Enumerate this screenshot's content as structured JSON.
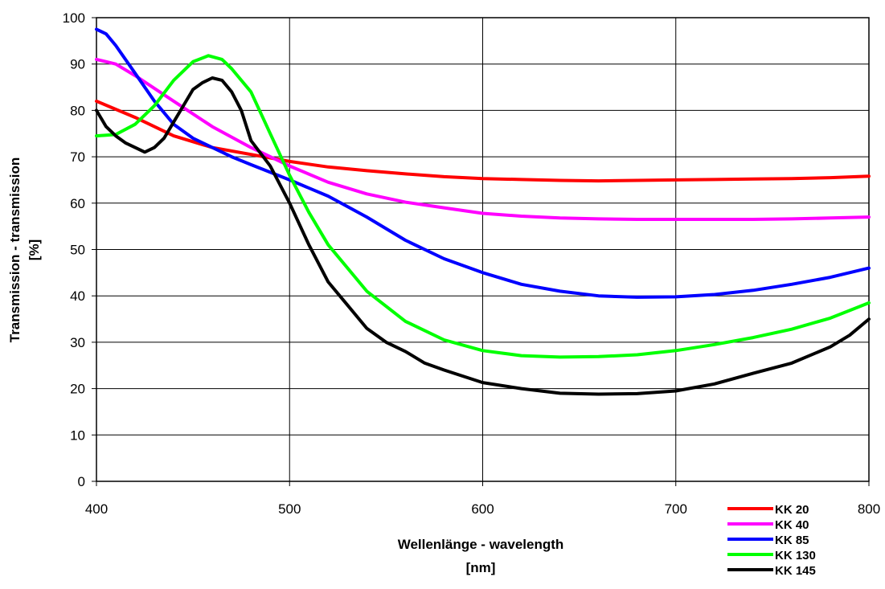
{
  "chart_data": {
    "type": "line",
    "title": "",
    "xlabel": "Wellenlänge - wavelength",
    "xlabel_unit": "[nm]",
    "ylabel": "Transmission - transmission",
    "ylabel_unit": "[%]",
    "xlim": [
      400,
      800
    ],
    "ylim": [
      0,
      100
    ],
    "xticks": [
      400,
      500,
      600,
      700,
      800
    ],
    "yticks": [
      0,
      10,
      20,
      30,
      40,
      50,
      60,
      70,
      80,
      90,
      100
    ],
    "grid": true,
    "legend_position": "bottom-right",
    "series": [
      {
        "name": "KK 20",
        "color": "#ff0000",
        "x": [
          400,
          420,
          440,
          460,
          480,
          500,
          520,
          540,
          560,
          580,
          600,
          620,
          640,
          660,
          680,
          700,
          720,
          740,
          760,
          780,
          800
        ],
        "y": [
          82,
          78.5,
          74.5,
          72,
          70.5,
          69,
          67.8,
          67,
          66.3,
          65.7,
          65.3,
          65.1,
          64.9,
          64.8,
          64.9,
          65,
          65.1,
          65.2,
          65.3,
          65.5,
          65.8
        ]
      },
      {
        "name": "KK 40",
        "color": "#ff00ff",
        "x": [
          400,
          410,
          420,
          440,
          460,
          480,
          500,
          520,
          540,
          560,
          580,
          600,
          620,
          640,
          660,
          680,
          700,
          720,
          740,
          760,
          780,
          800
        ],
        "y": [
          91,
          90,
          87.5,
          82,
          76.5,
          72,
          68,
          64.5,
          62,
          60.2,
          59,
          57.8,
          57.2,
          56.8,
          56.6,
          56.5,
          56.5,
          56.5,
          56.5,
          56.6,
          56.8,
          57
        ]
      },
      {
        "name": "KK 85",
        "color": "#0000ff",
        "x": [
          400,
          405,
          410,
          420,
          430,
          440,
          450,
          460,
          470,
          480,
          500,
          520,
          540,
          560,
          580,
          600,
          620,
          640,
          660,
          680,
          700,
          720,
          740,
          760,
          780,
          800
        ],
        "y": [
          97.5,
          96.5,
          94,
          88,
          82,
          77,
          74,
          72,
          70,
          68.3,
          65,
          61.5,
          57,
          52,
          48,
          45,
          42.5,
          41,
          40,
          39.7,
          39.8,
          40.3,
          41.2,
          42.5,
          44,
          46
        ]
      },
      {
        "name": "KK 130",
        "color": "#00ff00",
        "x": [
          400,
          410,
          420,
          430,
          440,
          450,
          458,
          465,
          470,
          480,
          490,
          500,
          510,
          520,
          540,
          560,
          580,
          600,
          620,
          640,
          660,
          680,
          700,
          720,
          740,
          760,
          780,
          800
        ],
        "y": [
          74.5,
          74.8,
          77,
          81,
          86.5,
          90.5,
          91.8,
          91,
          89,
          84,
          75,
          66,
          58,
          51,
          41,
          34.5,
          30.5,
          28.2,
          27.1,
          26.8,
          26.9,
          27.3,
          28.2,
          29.5,
          31,
          32.8,
          35.2,
          38.5
        ]
      },
      {
        "name": "KK 145",
        "color": "#000000",
        "x": [
          400,
          405,
          410,
          415,
          420,
          425,
          430,
          435,
          440,
          445,
          450,
          455,
          460,
          465,
          470,
          475,
          480,
          490,
          500,
          510,
          520,
          530,
          540,
          550,
          560,
          570,
          580,
          600,
          620,
          640,
          660,
          680,
          700,
          720,
          740,
          760,
          780,
          790,
          800
        ],
        "y": [
          80,
          76.5,
          74.5,
          73,
          72,
          71,
          72,
          74,
          77.5,
          81,
          84.5,
          86,
          87,
          86.5,
          84,
          80,
          73.5,
          68,
          60,
          51,
          43,
          38,
          33,
          30,
          28,
          25.5,
          24,
          21.3,
          20,
          19,
          18.8,
          18.9,
          19.5,
          21,
          23.3,
          25.5,
          29,
          31.5,
          35
        ]
      }
    ]
  }
}
